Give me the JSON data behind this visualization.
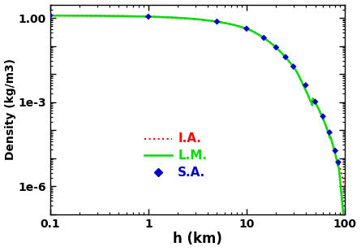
{
  "title": "",
  "xlabel": "h (km)",
  "ylabel": "Density (kg/m3)",
  "xlim": [
    0.1,
    100
  ],
  "ylim": [
    1e-07,
    3.0
  ],
  "legend": [
    {
      "label": "I.A.",
      "color": "#ff0000",
      "linestyle": "dotted"
    },
    {
      "label": "L.M.",
      "color": "#00dd00",
      "linestyle": "solid"
    },
    {
      "label": "S.A.",
      "color": "#0000cc",
      "marker": "D"
    }
  ],
  "sa_data": {
    "h": [
      0.1,
      1.0,
      5.0,
      10.0,
      15.0,
      20.0,
      25.0,
      30.0,
      40.0,
      50.0,
      60.0,
      70.0,
      80.0,
      86.0
    ],
    "rho": [
      1.225,
      1.112,
      0.7364,
      0.4135,
      0.1948,
      0.08891,
      0.04008,
      0.01841,
      0.003996,
      0.001027,
      0.0003097,
      8.283e-05,
      1.846e-05,
      7.166e-06
    ]
  },
  "background_color": "#ffffff"
}
